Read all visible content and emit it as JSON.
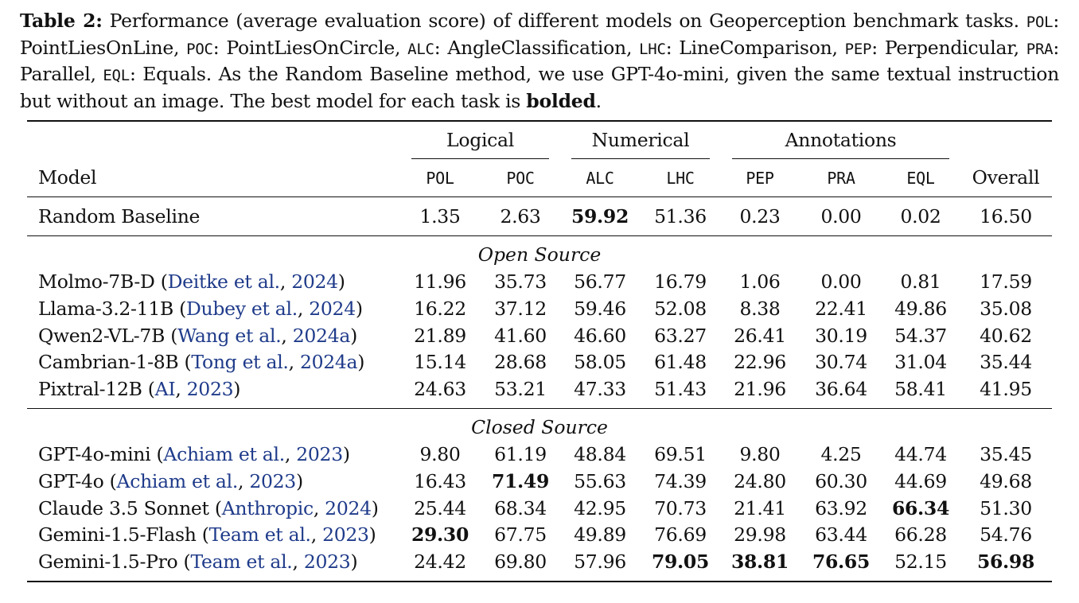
{
  "caption": {
    "label": "Table 2:",
    "parts": [
      {
        "t": " Performance (average evaluation score) of different models on Geoperception benchmark tasks. "
      },
      {
        "t": "POL",
        "mono": true
      },
      {
        "t": ": PointLiesOnLine, "
      },
      {
        "t": "POC",
        "mono": true
      },
      {
        "t": ": PointLiesOnCircle, "
      },
      {
        "t": "ALC",
        "mono": true
      },
      {
        "t": ": AngleClassification, "
      },
      {
        "t": "LHC",
        "mono": true
      },
      {
        "t": ": LineComparison, "
      },
      {
        "t": "PEP",
        "mono": true
      },
      {
        "t": ": Perpendicular, "
      },
      {
        "t": "PRA",
        "mono": true
      },
      {
        "t": ": Parallel, "
      },
      {
        "t": "EQL",
        "mono": true
      },
      {
        "t": ": Equals. As the Random Baseline method, we use GPT-4o-mini, given the same textual instruction but without an image. The best model for each task is "
      },
      {
        "t": "bolded",
        "bold": true
      },
      {
        "t": "."
      }
    ]
  },
  "table": {
    "groups": [
      "Logical",
      "Numerical",
      "Annotations"
    ],
    "model_header": "Model",
    "columns": [
      "POL",
      "POC",
      "ALC",
      "LHC",
      "PEP",
      "PRA",
      "EQL"
    ],
    "overall_header": "Overall",
    "baseline": {
      "name": "Random Baseline",
      "values": [
        "1.35",
        "2.63",
        "59.92",
        "51.36",
        "0.23",
        "0.00",
        "0.02",
        "16.50"
      ],
      "bold": [
        false,
        false,
        true,
        false,
        false,
        false,
        false,
        false
      ]
    },
    "sections": [
      {
        "title": "Open Source",
        "rows": [
          {
            "name": "Molmo-7B-D",
            "cite_authors": "Deitke et al.",
            "cite_year": "2024",
            "values": [
              "11.96",
              "35.73",
              "56.77",
              "16.79",
              "1.06",
              "0.00",
              "0.81",
              "17.59"
            ],
            "bold": [
              false,
              false,
              false,
              false,
              false,
              false,
              false,
              false
            ]
          },
          {
            "name": "Llama-3.2-11B",
            "cite_authors": "Dubey et al.",
            "cite_year": "2024",
            "values": [
              "16.22",
              "37.12",
              "59.46",
              "52.08",
              "8.38",
              "22.41",
              "49.86",
              "35.08"
            ],
            "bold": [
              false,
              false,
              false,
              false,
              false,
              false,
              false,
              false
            ]
          },
          {
            "name": "Qwen2-VL-7B",
            "cite_authors": "Wang et al.",
            "cite_year": "2024a",
            "values": [
              "21.89",
              "41.60",
              "46.60",
              "63.27",
              "26.41",
              "30.19",
              "54.37",
              "40.62"
            ],
            "bold": [
              false,
              false,
              false,
              false,
              false,
              false,
              false,
              false
            ]
          },
          {
            "name": "Cambrian-1-8B",
            "cite_authors": "Tong et al.",
            "cite_year": "2024a",
            "values": [
              "15.14",
              "28.68",
              "58.05",
              "61.48",
              "22.96",
              "30.74",
              "31.04",
              "35.44"
            ],
            "bold": [
              false,
              false,
              false,
              false,
              false,
              false,
              false,
              false
            ]
          },
          {
            "name": "Pixtral-12B",
            "cite_authors": "AI",
            "cite_year": "2023",
            "values": [
              "24.63",
              "53.21",
              "47.33",
              "51.43",
              "21.96",
              "36.64",
              "58.41",
              "41.95"
            ],
            "bold": [
              false,
              false,
              false,
              false,
              false,
              false,
              false,
              false
            ]
          }
        ]
      },
      {
        "title": "Closed Source",
        "rows": [
          {
            "name": "GPT-4o-mini",
            "cite_authors": "Achiam et al.",
            "cite_year": "2023",
            "values": [
              "9.80",
              "61.19",
              "48.84",
              "69.51",
              "9.80",
              "4.25",
              "44.74",
              "35.45"
            ],
            "bold": [
              false,
              false,
              false,
              false,
              false,
              false,
              false,
              false
            ]
          },
          {
            "name": "GPT-4o",
            "cite_authors": "Achiam et al.",
            "cite_year": "2023",
            "values": [
              "16.43",
              "71.49",
              "55.63",
              "74.39",
              "24.80",
              "60.30",
              "44.69",
              "49.68"
            ],
            "bold": [
              false,
              true,
              false,
              false,
              false,
              false,
              false,
              false
            ]
          },
          {
            "name": "Claude 3.5 Sonnet",
            "cite_authors": "Anthropic",
            "cite_year": "2024",
            "values": [
              "25.44",
              "68.34",
              "42.95",
              "70.73",
              "21.41",
              "63.92",
              "66.34",
              "51.30"
            ],
            "bold": [
              false,
              false,
              false,
              false,
              false,
              false,
              true,
              false
            ]
          },
          {
            "name": "Gemini-1.5-Flash",
            "cite_authors": "Team et al.",
            "cite_year": "2023",
            "values": [
              "29.30",
              "67.75",
              "49.89",
              "76.69",
              "29.98",
              "63.44",
              "66.28",
              "54.76"
            ],
            "bold": [
              true,
              false,
              false,
              false,
              false,
              false,
              false,
              false
            ]
          },
          {
            "name": "Gemini-1.5-Pro",
            "cite_authors": "Team et al.",
            "cite_year": "2023",
            "values": [
              "24.42",
              "69.80",
              "57.96",
              "79.05",
              "38.81",
              "76.65",
              "52.15",
              "56.98"
            ],
            "bold": [
              false,
              false,
              false,
              true,
              true,
              true,
              false,
              true
            ]
          }
        ]
      }
    ]
  }
}
